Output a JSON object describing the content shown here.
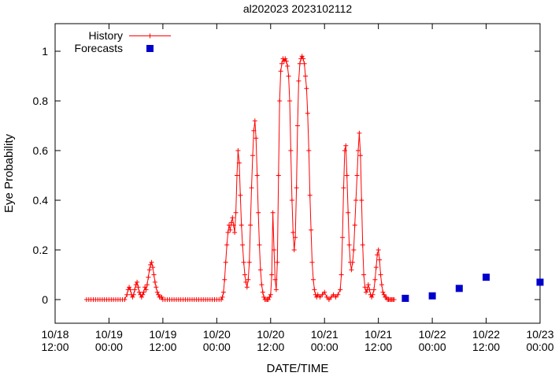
{
  "title": "al202023 2023102112",
  "axes": {
    "ylabel": "Eye Probability",
    "xlabel": "DATE/TIME",
    "y_ticks": [
      {
        "value": 0,
        "label": "0"
      },
      {
        "value": 0.2,
        "label": "0.2"
      },
      {
        "value": 0.4,
        "label": "0.4"
      },
      {
        "value": 0.6,
        "label": "0.6"
      },
      {
        "value": 0.8,
        "label": "0.8"
      },
      {
        "value": 1,
        "label": "1"
      }
    ],
    "x_ticks": [
      {
        "t": 0,
        "line1": "10/18",
        "line2": "12:00"
      },
      {
        "t": 12,
        "line1": "10/19",
        "line2": "00:00"
      },
      {
        "t": 24,
        "line1": "10/19",
        "line2": "12:00"
      },
      {
        "t": 36,
        "line1": "10/20",
        "line2": "00:00"
      },
      {
        "t": 48,
        "line1": "10/20",
        "line2": "12:00"
      },
      {
        "t": 60,
        "line1": "10/21",
        "line2": "00:00"
      },
      {
        "t": 72,
        "line1": "10/21",
        "line2": "12:00"
      },
      {
        "t": 84,
        "line1": "10/22",
        "line2": "00:00"
      },
      {
        "t": 96,
        "line1": "10/22",
        "line2": "12:00"
      },
      {
        "t": 108,
        "line1": "10/23",
        "line2": "00:00"
      }
    ]
  },
  "legend": {
    "history": "History",
    "forecasts": "Forecasts",
    "position": "top-left-inside"
  },
  "colors": {
    "history": "#ff0000",
    "forecast": "#0000cc",
    "axis": "#000000",
    "background": "#ffffff"
  },
  "chart_data": {
    "type": "line",
    "title": "al202023 2023102112",
    "xlabel": "DATE/TIME",
    "ylabel": "Eye Probability",
    "x_unit": "hours since 10/18 12:00",
    "xlim_hours": [
      0,
      108
    ],
    "ylim": [
      -0.1,
      1.1
    ],
    "grid": false,
    "series": [
      {
        "name": "History",
        "style": "linespoints-plus",
        "color": "#ff0000",
        "points": [
          [
            7,
            0
          ],
          [
            7.5,
            0
          ],
          [
            8,
            0
          ],
          [
            8.5,
            0
          ],
          [
            9,
            0
          ],
          [
            9.5,
            0
          ],
          [
            10,
            0
          ],
          [
            10.5,
            0
          ],
          [
            11,
            0
          ],
          [
            11.5,
            0
          ],
          [
            12,
            0
          ],
          [
            12.5,
            0
          ],
          [
            13,
            0
          ],
          [
            13.5,
            0
          ],
          [
            14,
            0
          ],
          [
            14.5,
            0
          ],
          [
            15,
            0
          ],
          [
            15.5,
            0
          ],
          [
            16,
            0.02
          ],
          [
            16.25,
            0.04
          ],
          [
            16.5,
            0.05
          ],
          [
            16.75,
            0.04
          ],
          [
            17,
            0.02
          ],
          [
            17.25,
            0.01
          ],
          [
            17.5,
            0.02
          ],
          [
            17.75,
            0.04
          ],
          [
            18,
            0.06
          ],
          [
            18.25,
            0.07
          ],
          [
            18.5,
            0.05
          ],
          [
            18.75,
            0.03
          ],
          [
            19,
            0.02
          ],
          [
            19.25,
            0.01
          ],
          [
            19.5,
            0.02
          ],
          [
            19.75,
            0.03
          ],
          [
            20,
            0.05
          ],
          [
            20.25,
            0.04
          ],
          [
            20.5,
            0.06
          ],
          [
            20.75,
            0.09
          ],
          [
            21,
            0.12
          ],
          [
            21.25,
            0.14
          ],
          [
            21.5,
            0.15
          ],
          [
            21.75,
            0.13
          ],
          [
            22,
            0.1
          ],
          [
            22.25,
            0.07
          ],
          [
            22.5,
            0.05
          ],
          [
            22.75,
            0.03
          ],
          [
            23,
            0.02
          ],
          [
            23.25,
            0.01
          ],
          [
            23.5,
            0.01
          ],
          [
            23.75,
            0.01
          ],
          [
            24,
            0
          ],
          [
            24.5,
            0
          ],
          [
            25,
            0
          ],
          [
            25.5,
            0
          ],
          [
            26,
            0
          ],
          [
            26.5,
            0
          ],
          [
            27,
            0
          ],
          [
            27.5,
            0
          ],
          [
            28,
            0
          ],
          [
            28.5,
            0
          ],
          [
            29,
            0
          ],
          [
            29.5,
            0
          ],
          [
            30,
            0
          ],
          [
            30.5,
            0
          ],
          [
            31,
            0
          ],
          [
            31.5,
            0
          ],
          [
            32,
            0
          ],
          [
            32.5,
            0
          ],
          [
            33,
            0
          ],
          [
            33.5,
            0
          ],
          [
            34,
            0
          ],
          [
            34.5,
            0
          ],
          [
            35,
            0
          ],
          [
            35.5,
            0
          ],
          [
            36,
            0
          ],
          [
            36.5,
            0
          ],
          [
            37,
            0
          ],
          [
            37.25,
            0.01
          ],
          [
            37.5,
            0.03
          ],
          [
            37.75,
            0.08
          ],
          [
            38,
            0.15
          ],
          [
            38.25,
            0.22
          ],
          [
            38.5,
            0.27
          ],
          [
            38.75,
            0.3
          ],
          [
            39,
            0.28
          ],
          [
            39.25,
            0.31
          ],
          [
            39.5,
            0.33
          ],
          [
            39.75,
            0.3
          ],
          [
            40,
            0.27
          ],
          [
            40.25,
            0.35
          ],
          [
            40.5,
            0.5
          ],
          [
            40.75,
            0.6
          ],
          [
            41,
            0.55
          ],
          [
            41.25,
            0.42
          ],
          [
            41.5,
            0.3
          ],
          [
            41.75,
            0.22
          ],
          [
            42,
            0.15
          ],
          [
            42.25,
            0.1
          ],
          [
            42.5,
            0.07
          ],
          [
            42.75,
            0.05
          ],
          [
            43,
            0.08
          ],
          [
            43.25,
            0.15
          ],
          [
            43.5,
            0.3
          ],
          [
            43.75,
            0.45
          ],
          [
            44,
            0.58
          ],
          [
            44.25,
            0.68
          ],
          [
            44.5,
            0.72
          ],
          [
            44.75,
            0.65
          ],
          [
            45,
            0.5
          ],
          [
            45.25,
            0.35
          ],
          [
            45.5,
            0.22
          ],
          [
            45.75,
            0.12
          ],
          [
            46,
            0.06
          ],
          [
            46.25,
            0.03
          ],
          [
            46.5,
            0.01
          ],
          [
            46.75,
            0
          ],
          [
            47,
            0
          ],
          [
            47.25,
            0
          ],
          [
            47.5,
            0
          ],
          [
            47.75,
            0.01
          ],
          [
            48,
            0.02
          ],
          [
            48.25,
            0.1
          ],
          [
            48.5,
            0.35
          ],
          [
            48.75,
            0.2
          ],
          [
            49,
            0.08
          ],
          [
            49.25,
            0.04
          ],
          [
            49.5,
            0.15
          ],
          [
            49.75,
            0.5
          ],
          [
            50,
            0.8
          ],
          [
            50.25,
            0.92
          ],
          [
            50.5,
            0.95
          ],
          [
            50.75,
            0.97
          ],
          [
            51,
            0.96
          ],
          [
            51.25,
            0.97
          ],
          [
            51.5,
            0.96
          ],
          [
            51.75,
            0.94
          ],
          [
            52,
            0.9
          ],
          [
            52.25,
            0.8
          ],
          [
            52.5,
            0.6
          ],
          [
            52.75,
            0.4
          ],
          [
            53,
            0.27
          ],
          [
            53.25,
            0.2
          ],
          [
            53.5,
            0.25
          ],
          [
            53.75,
            0.45
          ],
          [
            54,
            0.7
          ],
          [
            54.25,
            0.88
          ],
          [
            54.5,
            0.95
          ],
          [
            54.75,
            0.97
          ],
          [
            55,
            0.98
          ],
          [
            55.25,
            0.97
          ],
          [
            55.5,
            0.95
          ],
          [
            55.75,
            0.9
          ],
          [
            56,
            0.85
          ],
          [
            56.25,
            0.75
          ],
          [
            56.5,
            0.6
          ],
          [
            56.75,
            0.42
          ],
          [
            57,
            0.28
          ],
          [
            57.25,
            0.15
          ],
          [
            57.5,
            0.08
          ],
          [
            57.75,
            0.04
          ],
          [
            58,
            0.02
          ],
          [
            58.25,
            0.01
          ],
          [
            58.5,
            0.02
          ],
          [
            59,
            0.01
          ],
          [
            59.5,
            0.02
          ],
          [
            60,
            0.03
          ],
          [
            60.5,
            0.01
          ],
          [
            61,
            0
          ],
          [
            61.5,
            0.01
          ],
          [
            62,
            0.02
          ],
          [
            62.5,
            0.01
          ],
          [
            63,
            0.02
          ],
          [
            63.5,
            0.04
          ],
          [
            63.75,
            0.1
          ],
          [
            64,
            0.25
          ],
          [
            64.25,
            0.45
          ],
          [
            64.5,
            0.6
          ],
          [
            64.75,
            0.62
          ],
          [
            65,
            0.5
          ],
          [
            65.25,
            0.35
          ],
          [
            65.5,
            0.22
          ],
          [
            65.75,
            0.15
          ],
          [
            66,
            0.12
          ],
          [
            66.25,
            0.15
          ],
          [
            66.5,
            0.2
          ],
          [
            66.75,
            0.3
          ],
          [
            67,
            0.4
          ],
          [
            67.25,
            0.5
          ],
          [
            67.5,
            0.6
          ],
          [
            67.75,
            0.67
          ],
          [
            68,
            0.58
          ],
          [
            68.25,
            0.4
          ],
          [
            68.5,
            0.22
          ],
          [
            68.75,
            0.1
          ],
          [
            69,
            0.05
          ],
          [
            69.25,
            0.03
          ],
          [
            69.5,
            0.04
          ],
          [
            69.75,
            0.06
          ],
          [
            70,
            0.04
          ],
          [
            70.25,
            0.02
          ],
          [
            70.5,
            0.01
          ],
          [
            70.75,
            0.02
          ],
          [
            71,
            0.04
          ],
          [
            71.25,
            0.08
          ],
          [
            71.5,
            0.13
          ],
          [
            71.75,
            0.18
          ],
          [
            72,
            0.2
          ],
          [
            72.25,
            0.16
          ],
          [
            72.5,
            0.1
          ],
          [
            72.75,
            0.06
          ],
          [
            73,
            0.03
          ],
          [
            73.25,
            0.02
          ],
          [
            73.5,
            0.01
          ],
          [
            73.75,
            0.01
          ],
          [
            74,
            0
          ],
          [
            74.25,
            0
          ],
          [
            74.5,
            0
          ],
          [
            74.75,
            0
          ],
          [
            75,
            0
          ],
          [
            75.25,
            0
          ],
          [
            75.5,
            0
          ]
        ]
      },
      {
        "name": "Forecasts",
        "style": "filled-squares",
        "color": "#0000cc",
        "times": [
          "10/21 18:00",
          "10/22 00:00",
          "10/22 06:00",
          "10/22 12:00",
          "10/23 00:00"
        ],
        "points": [
          [
            78,
            0.005
          ],
          [
            84,
            0.015
          ],
          [
            90,
            0.045
          ],
          [
            96,
            0.09
          ],
          [
            108,
            0.07
          ]
        ]
      }
    ]
  }
}
